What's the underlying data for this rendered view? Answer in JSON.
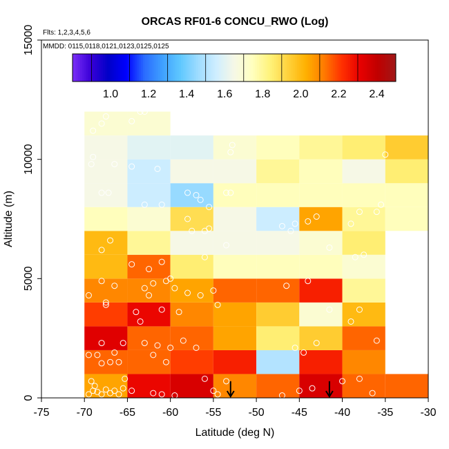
{
  "chart_data": {
    "type": "heatmap",
    "title": "ORCAS RF01-6 CONCU_RWO (Log)",
    "notes": {
      "flights": "Flts: 1,2,3,4,5,6",
      "dates": "MMDD: 0115,0118,0121,0123,0125,0125"
    },
    "xlabel": "Latitude (deg N)",
    "ylabel": "Altitude (m)",
    "xlim": [
      -75,
      -30
    ],
    "ylim": [
      0,
      15000
    ],
    "x_ticks": [
      -75,
      -70,
      -65,
      -60,
      -55,
      -50,
      -45,
      -40,
      -35,
      -30
    ],
    "x_tick_labels": [
      "-75",
      "-70",
      "-65",
      "-60",
      "-55",
      "-50",
      "-45",
      "-40",
      "-35",
      "-30"
    ],
    "y_ticks": [
      0,
      5000,
      10000,
      15000
    ],
    "y_tick_labels": [
      "0",
      "5000",
      "10000",
      "15000"
    ],
    "colorbar": {
      "range": [
        0.8,
        2.5
      ],
      "ticks": [
        1.0,
        1.2,
        1.4,
        1.6,
        1.8,
        2.0,
        2.2,
        2.4
      ],
      "tick_labels": [
        "1.0",
        "1.2",
        "1.4",
        "1.6",
        "1.8",
        "2.0",
        "2.2",
        "2.4"
      ],
      "colors": [
        "#7b2ff7",
        "#3a00d8",
        "#0000c8",
        "#0000ff",
        "#2a6cff",
        "#3fa0ff",
        "#5fc8ff",
        "#9fdcff",
        "#cfeeff",
        "#f6f8e6",
        "#ffffc0",
        "#fff27a",
        "#ffd23c",
        "#ffb000",
        "#ff7b00",
        "#ff3000",
        "#e80000",
        "#c00000",
        "#a01818"
      ]
    },
    "cell_width_deg": 5,
    "cell_height_m": 1000,
    "lat_bins": [
      -70,
      -65,
      -60,
      -55,
      -50,
      -45,
      -40,
      -35
    ],
    "rows": [
      {
        "alt_bottom": 0,
        "values": [
          2.05,
          2.3,
          2.35,
          2.1,
          2.15,
          2.35,
          2.15,
          2.15
        ]
      },
      {
        "alt_bottom": 1000,
        "values": [
          2.15,
          2.15,
          2.2,
          2.25,
          1.5,
          2.25,
          2.1,
          null
        ]
      },
      {
        "alt_bottom": 2000,
        "values": [
          2.33,
          2.15,
          2.15,
          2.05,
          1.85,
          1.95,
          2.15,
          null
        ]
      },
      {
        "alt_bottom": 3000,
        "values": [
          2.2,
          2.3,
          2.1,
          2.05,
          1.95,
          1.7,
          2.0,
          null
        ]
      },
      {
        "alt_bottom": 4000,
        "values": [
          2.1,
          2.1,
          2.05,
          2.15,
          2.15,
          2.25,
          1.8,
          null
        ]
      },
      {
        "alt_bottom": 5000,
        "values": [
          2.0,
          2.15,
          1.85,
          1.75,
          1.75,
          1.75,
          1.7,
          null
        ]
      },
      {
        "alt_bottom": 6000,
        "values": [
          2.0,
          1.8,
          1.65,
          1.65,
          1.65,
          1.7,
          1.85,
          null
        ]
      },
      {
        "alt_bottom": 7000,
        "values": [
          1.75,
          1.7,
          1.9,
          1.65,
          1.55,
          2.05,
          1.8,
          1.75
        ]
      },
      {
        "alt_bottom": 8000,
        "values": [
          1.65,
          1.55,
          1.45,
          1.75,
          1.75,
          1.75,
          1.75,
          1.75
        ]
      },
      {
        "alt_bottom": 9000,
        "values": [
          1.65,
          1.55,
          1.65,
          1.65,
          1.8,
          1.75,
          1.65,
          1.85
        ]
      },
      {
        "alt_bottom": 10000,
        "values": [
          1.65,
          1.6,
          1.6,
          1.7,
          1.75,
          1.8,
          1.85,
          1.95
        ]
      },
      {
        "alt_bottom": 11000,
        "values": [
          1.7,
          1.7,
          null,
          null,
          null,
          null,
          null,
          null
        ]
      }
    ],
    "sample_points": [
      [
        -69.5,
        150
      ],
      [
        -69,
        300
      ],
      [
        -68.5,
        250
      ],
      [
        -68,
        150
      ],
      [
        -67.5,
        350
      ],
      [
        -67,
        200
      ],
      [
        -66.5,
        300
      ],
      [
        -66,
        150
      ],
      [
        -65.5,
        400
      ],
      [
        -65.3,
        800
      ],
      [
        -68.8,
        500
      ],
      [
        -69.2,
        700
      ],
      [
        -68,
        1450
      ],
      [
        -67,
        1500
      ],
      [
        -68.5,
        1800
      ],
      [
        -66.5,
        1900
      ],
      [
        -66,
        1500
      ],
      [
        -69.5,
        1800
      ],
      [
        -62,
        1800
      ],
      [
        -60.5,
        1500
      ],
      [
        -63,
        2300
      ],
      [
        -61.5,
        2200
      ],
      [
        -60,
        2100
      ],
      [
        -58.5,
        2400
      ],
      [
        -57,
        2100
      ],
      [
        -68,
        2300
      ],
      [
        -65.5,
        2300
      ],
      [
        -63.5,
        3200
      ],
      [
        -61,
        3700
      ],
      [
        -64,
        3600
      ],
      [
        -67.5,
        3900
      ],
      [
        -59,
        3600
      ],
      [
        -67.5,
        4000
      ],
      [
        -69.5,
        4300
      ],
      [
        -68,
        4900
      ],
      [
        -66.5,
        4700
      ],
      [
        -63,
        4600
      ],
      [
        -62,
        4800
      ],
      [
        -60.5,
        4900
      ],
      [
        -59.5,
        4600
      ],
      [
        -58,
        4400
      ],
      [
        -56.5,
        4300
      ],
      [
        -55,
        4500
      ],
      [
        -54.5,
        3900
      ],
      [
        -62.5,
        4300
      ],
      [
        -64.5,
        5600
      ],
      [
        -62.5,
        5400
      ],
      [
        -61,
        5700
      ],
      [
        -60,
        5000
      ],
      [
        -56,
        5900
      ],
      [
        -67,
        6600
      ],
      [
        -68,
        6200
      ],
      [
        -53.5,
        6400
      ],
      [
        -44,
        4900
      ],
      [
        -46.5,
        4700
      ],
      [
        -41.5,
        3700
      ],
      [
        -39,
        3200
      ],
      [
        -38,
        3700
      ],
      [
        -43,
        2300
      ],
      [
        -45.5,
        2100
      ],
      [
        -44.5,
        1900
      ],
      [
        -36,
        2400
      ],
      [
        -38.5,
        5900
      ],
      [
        -37.5,
        6000
      ],
      [
        -57.5,
        7000
      ],
      [
        -58,
        7500
      ],
      [
        -56,
        7000
      ],
      [
        -55.5,
        7100
      ],
      [
        -55.5,
        8000
      ],
      [
        -57,
        8500
      ],
      [
        -58,
        8600
      ],
      [
        -56.5,
        8300
      ],
      [
        -53.5,
        8600
      ],
      [
        -53,
        8600
      ],
      [
        -63,
        8100
      ],
      [
        -61,
        8100
      ],
      [
        -68,
        8600
      ],
      [
        -67.2,
        8600
      ],
      [
        -64.5,
        9700
      ],
      [
        -66.5,
        9800
      ],
      [
        -69.2,
        9800
      ],
      [
        -69,
        10100
      ],
      [
        -61.5,
        9600
      ],
      [
        -63.5,
        12000
      ],
      [
        -63,
        12000
      ],
      [
        -64.5,
        11600
      ],
      [
        -67.5,
        11800
      ],
      [
        -68,
        11500
      ],
      [
        -69,
        11200
      ],
      [
        -53,
        10300
      ],
      [
        -52.8,
        10600
      ],
      [
        -47,
        7200
      ],
      [
        -45.5,
        7300
      ],
      [
        -46,
        7000
      ],
      [
        -43,
        7600
      ],
      [
        -44,
        7400
      ],
      [
        -39,
        7300
      ],
      [
        -38,
        7800
      ],
      [
        -35.5,
        8100
      ],
      [
        -36,
        7800
      ],
      [
        -41.5,
        6300
      ],
      [
        -35,
        10200
      ],
      [
        -64.5,
        300
      ],
      [
        -62,
        200
      ],
      [
        -61,
        150
      ],
      [
        -59.5,
        100
      ],
      [
        -55,
        300
      ],
      [
        -54.5,
        150
      ],
      [
        -56,
        800
      ],
      [
        -53.5,
        700
      ],
      [
        -45,
        300
      ],
      [
        -43.5,
        400
      ],
      [
        -40,
        700
      ],
      [
        -38,
        800
      ],
      [
        -36.5,
        200
      ],
      [
        -47,
        100
      ]
    ],
    "arrows_at_latitude": [
      -53,
      -41.5
    ]
  }
}
